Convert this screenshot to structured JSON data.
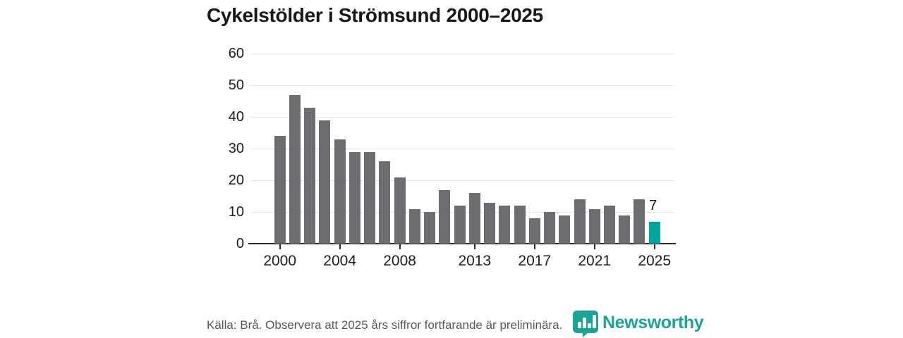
{
  "chart_data": {
    "type": "bar",
    "title": "Cykelstölder i Strömsund 2000–2025",
    "xlabel": "",
    "ylabel": "",
    "categories": [
      2000,
      2001,
      2002,
      2003,
      2004,
      2005,
      2006,
      2007,
      2008,
      2009,
      2010,
      2011,
      2012,
      2013,
      2014,
      2015,
      2016,
      2017,
      2018,
      2019,
      2020,
      2021,
      2022,
      2023,
      2024,
      2025
    ],
    "values": [
      34,
      47,
      43,
      39,
      33,
      29,
      29,
      26,
      21,
      11,
      10,
      17,
      12,
      16,
      13,
      12,
      12,
      8,
      10,
      9,
      14,
      11,
      12,
      9,
      14,
      7
    ],
    "ylim": [
      0,
      60
    ],
    "yticks": [
      0,
      10,
      20,
      30,
      40,
      50,
      60
    ],
    "xticks": [
      2000,
      2004,
      2008,
      2013,
      2017,
      2021,
      2025
    ],
    "grid": "horizontal",
    "legend_position": "none",
    "bar_color": "#6c6c71",
    "highlight_color": "#00a49c",
    "highlight_category": 2025,
    "annotation": {
      "category": 2025,
      "text": "7"
    }
  },
  "footer": {
    "source_note": "Källa: Brå. Observera att 2025 års siffror fortfarande är preliminära.",
    "logo_text": "Newsworthy",
    "logo_color": "#1ba398"
  }
}
